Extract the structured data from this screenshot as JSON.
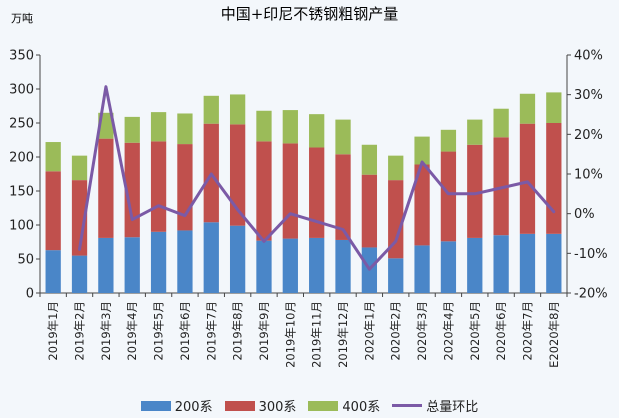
{
  "chart_data": {
    "type": "bar",
    "title": "中国+印尼不锈钢粗钢产量",
    "unit_label": "万吨",
    "categories": [
      "2019年1月",
      "2019年2月",
      "2019年3月",
      "2019年4月",
      "2019年5月",
      "2019年6月",
      "2019年7月",
      "2019年8月",
      "2019年9月",
      "2019年10月",
      "2019年11月",
      "2019年12月",
      "2020年1月",
      "2020年2月",
      "2020年3月",
      "2020年4月",
      "2020年5月",
      "2020年6月",
      "2020年7月",
      "E2020年8月"
    ],
    "series": [
      {
        "name": "200系",
        "color": "#4a86c8",
        "stack": true,
        "values": [
          63,
          55,
          81,
          82,
          90,
          92,
          104,
          99,
          77,
          80,
          81,
          78,
          67,
          51,
          70,
          76,
          81,
          85,
          87,
          87
        ]
      },
      {
        "name": "300系",
        "color": "#c0504d",
        "stack": true,
        "values": [
          116,
          111,
          146,
          139,
          133,
          127,
          145,
          149,
          146,
          140,
          133,
          126,
          107,
          115,
          119,
          132,
          137,
          144,
          162,
          163
        ]
      },
      {
        "name": "400系",
        "color": "#9bbb59",
        "stack": true,
        "values": [
          43,
          36,
          38,
          38,
          43,
          45,
          41,
          44,
          45,
          49,
          49,
          51,
          44,
          36,
          41,
          32,
          37,
          42,
          44,
          45
        ]
      },
      {
        "name": "总量环比",
        "color": "#7b5aa6",
        "type": "line",
        "axis": "right",
        "values": [
          null,
          -9,
          32,
          -1.5,
          2,
          -0.5,
          10,
          1,
          -7,
          0,
          -2,
          -4,
          -14,
          -7,
          13,
          5,
          5,
          6.5,
          8,
          0.5
        ]
      }
    ],
    "ylim": [
      0,
      350
    ],
    "yticks": [
      "0",
      "50",
      "100",
      "150",
      "200",
      "250",
      "300",
      "350"
    ],
    "y2lim": [
      -20,
      40
    ],
    "y2ticks": [
      "-20%",
      "-10%",
      "0%",
      "10%",
      "20%",
      "30%",
      "40%"
    ],
    "grid": false,
    "legend": "bottom"
  }
}
